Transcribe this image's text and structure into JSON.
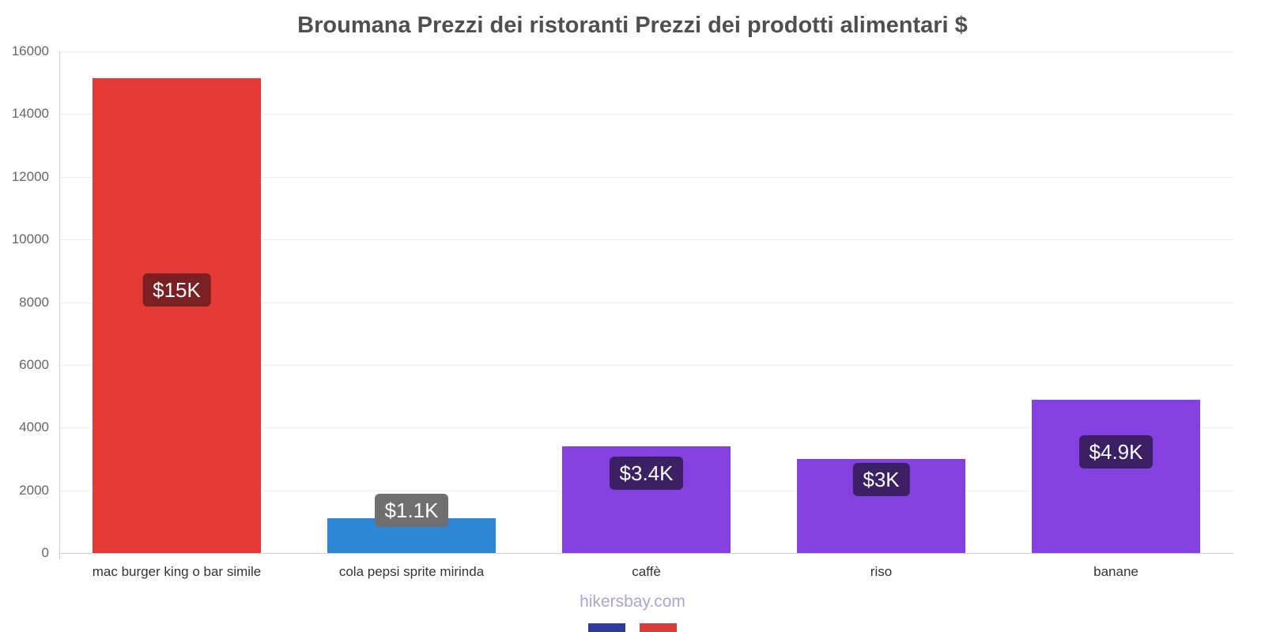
{
  "footer": "hikersbay.com",
  "chart_data": {
    "type": "bar",
    "title": "Broumana Prezzi dei ristoranti Prezzi dei prodotti alimentari $",
    "categories": [
      "mac burger king o bar simile",
      "cola pepsi sprite mirinda",
      "caffè",
      "riso",
      "banane"
    ],
    "values": [
      15150,
      1100,
      3400,
      3000,
      4900
    ],
    "value_labels": [
      "$15K",
      "$1.1K",
      "$3.4K",
      "$3K",
      "$4.9K"
    ],
    "bar_colors": [
      "#e53935",
      "#2f86d5",
      "#8440e0",
      "#8440e0",
      "#8440e0"
    ],
    "label_bg_colors": [
      "#7a1f22",
      "#6f6f6f",
      "#3b2064",
      "#3b2064",
      "#3b2064"
    ],
    "label_text_color": "#ffffff",
    "label_y_values": [
      8400,
      1360,
      2550,
      2350,
      3230
    ],
    "ylim": [
      0,
      16000
    ],
    "yticks": [
      0,
      2000,
      4000,
      6000,
      8000,
      10000,
      12000,
      14000,
      16000
    ],
    "grid": true,
    "legend": false,
    "xlabel": "",
    "ylabel": ""
  },
  "colors": {
    "grid": "#f0f0f0",
    "baseline": "#cfcfcf",
    "tick_text": "#666666",
    "category_text": "#333333",
    "title_text": "#4f4f4f",
    "footer_text": "#afa3d0"
  },
  "flag_strip": {
    "segments": [
      {
        "color": "#2e3d9b",
        "width": 0.42
      },
      {
        "color": "#ffffff",
        "width": 0.16
      },
      {
        "color": "#dd3a3a",
        "width": 0.42
      }
    ]
  }
}
